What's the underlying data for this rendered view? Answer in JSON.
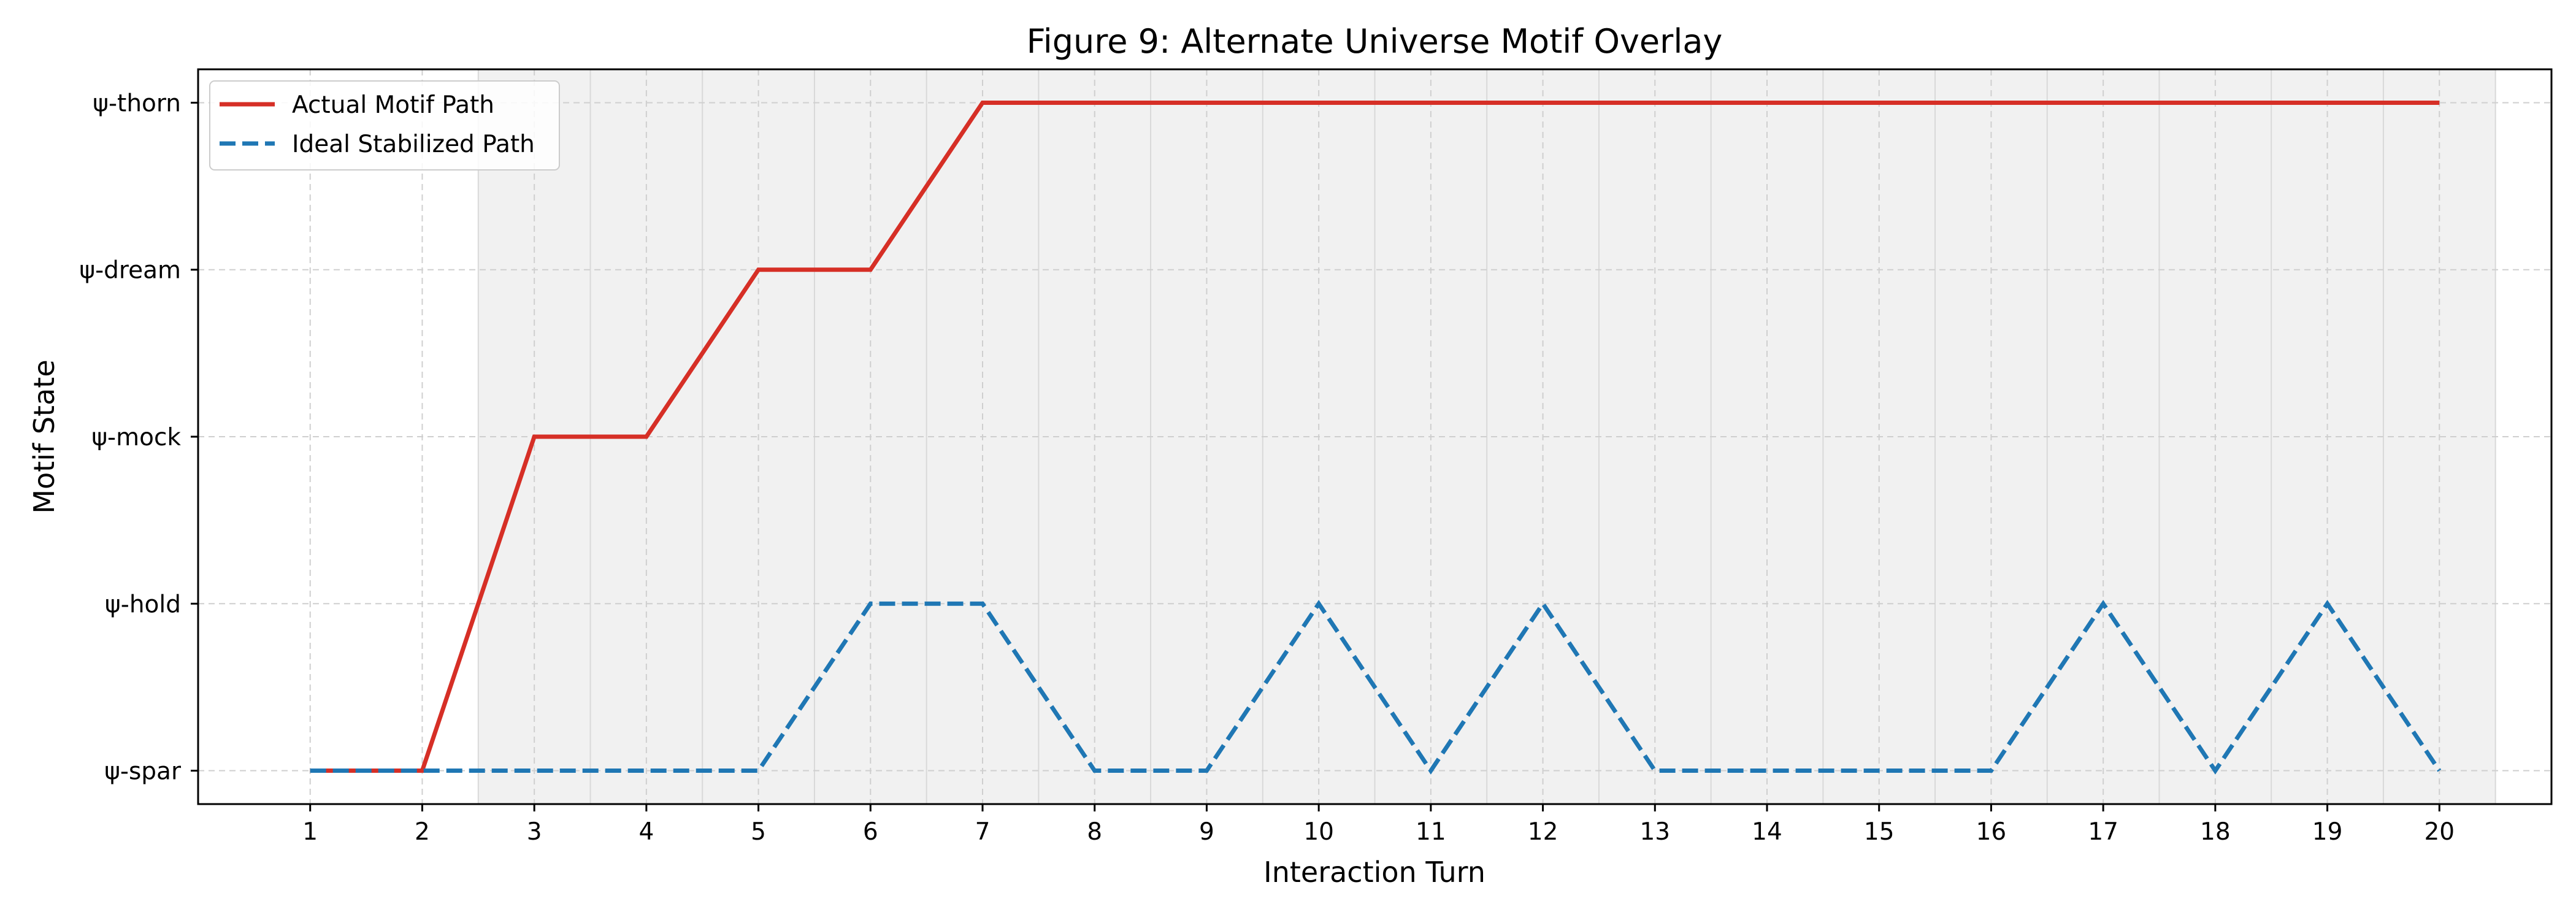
{
  "chart_data": {
    "type": "line",
    "title": "Figure 9: Alternate Universe Motif Overlay",
    "xlabel": "Interaction Turn",
    "ylabel": "Motif State",
    "x": [
      1,
      2,
      3,
      4,
      5,
      6,
      7,
      8,
      9,
      10,
      11,
      12,
      13,
      14,
      15,
      16,
      17,
      18,
      19,
      20
    ],
    "xlim": [
      0,
      21
    ],
    "y_categories": [
      "ψ-spar",
      "ψ-hold",
      "ψ-mock",
      "ψ-dream",
      "ψ-thorn"
    ],
    "ylim": [
      -0.2,
      4.2
    ],
    "grid": true,
    "legend_position": "upper left",
    "shaded_region": [
      2.5,
      20.5
    ],
    "series": [
      {
        "name": "Actual Motif Path",
        "color": "#d62f26",
        "style": "solid",
        "values": [
          "ψ-spar",
          "ψ-spar",
          "ψ-mock",
          "ψ-mock",
          "ψ-dream",
          "ψ-dream",
          "ψ-thorn",
          "ψ-thorn",
          "ψ-thorn",
          "ψ-thorn",
          "ψ-thorn",
          "ψ-thorn",
          "ψ-thorn",
          "ψ-thorn",
          "ψ-thorn",
          "ψ-thorn",
          "ψ-thorn",
          "ψ-thorn",
          "ψ-thorn",
          "ψ-thorn"
        ]
      },
      {
        "name": "Ideal Stabilized Path",
        "color": "#1f77b4",
        "style": "dashed",
        "values": [
          "ψ-spar",
          "ψ-spar",
          "ψ-spar",
          "ψ-spar",
          "ψ-spar",
          "ψ-hold",
          "ψ-hold",
          "ψ-spar",
          "ψ-spar",
          "ψ-hold",
          "ψ-spar",
          "ψ-hold",
          "ψ-spar",
          "ψ-spar",
          "ψ-spar",
          "ψ-spar",
          "ψ-hold",
          "ψ-spar",
          "ψ-hold",
          "ψ-spar"
        ]
      }
    ]
  }
}
